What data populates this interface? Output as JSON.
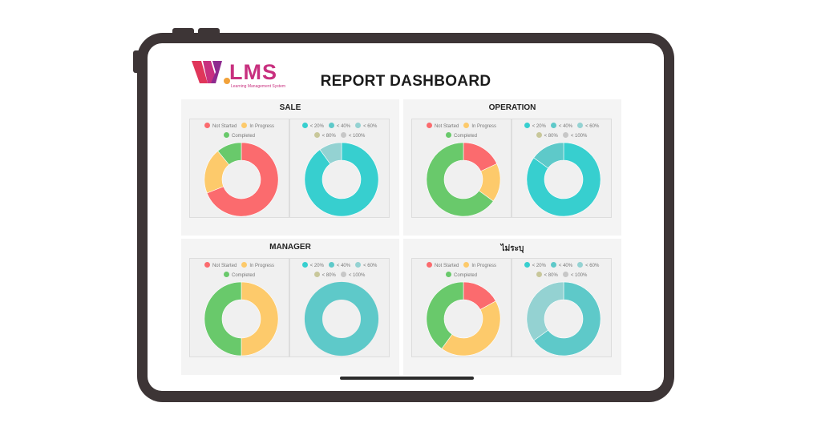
{
  "app": {
    "logo_text": "LMS",
    "logo_subtitle": "Learning Management System",
    "title": "REPORT DASHBOARD"
  },
  "colors": {
    "not_started": "#fb6b6e",
    "in_progress": "#fdca6b",
    "completed": "#69c96b",
    "lt20": "#37cfcf",
    "lt40": "#5ec9c9",
    "lt60": "#94d2d2",
    "lt80": "#c8c79a",
    "lt100": "#c7c7c7"
  },
  "legends": {
    "status": [
      "Not Started",
      "In Progress",
      "Completed"
    ],
    "score": [
      "< 20%",
      "< 40%",
      "< 60%",
      "< 80%",
      "< 100%"
    ]
  },
  "panels": [
    {
      "title": "SALE",
      "status_chart": {
        "type": "donut",
        "values": [
          69,
          20,
          11
        ]
      },
      "score_chart": {
        "type": "donut",
        "values": [
          90,
          0,
          10,
          0,
          0
        ]
      }
    },
    {
      "title": "OPERATION",
      "status_chart": {
        "type": "donut",
        "values": [
          18,
          17,
          65
        ]
      },
      "score_chart": {
        "type": "donut",
        "values": [
          85,
          15,
          0,
          0,
          0
        ]
      }
    },
    {
      "title": "MANAGER",
      "status_chart": {
        "type": "donut",
        "values": [
          0,
          50,
          50
        ]
      },
      "score_chart": {
        "type": "donut",
        "values": [
          0,
          100,
          0,
          0,
          0
        ]
      }
    },
    {
      "title": "ไม่ระบุ",
      "status_chart": {
        "type": "donut",
        "values": [
          17,
          43,
          40
        ]
      },
      "score_chart": {
        "type": "donut",
        "values": [
          0,
          65,
          35,
          0,
          0
        ]
      }
    }
  ]
}
